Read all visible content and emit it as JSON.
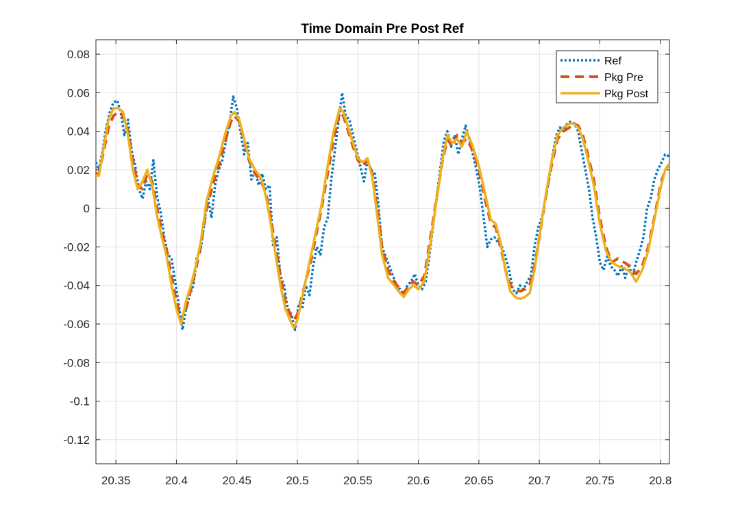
{
  "chart_data": {
    "type": "line",
    "title": "Time Domain Pre Post Ref",
    "xlabel": "",
    "ylabel": "",
    "xlim": [
      20.3335,
      20.8075
    ],
    "ylim": [
      -0.1325,
      0.0875
    ],
    "grid": true,
    "legend_position": "top-right",
    "x_ticks": [
      20.35,
      20.4,
      20.45,
      20.5,
      20.55,
      20.6,
      20.65,
      20.7,
      20.75,
      20.8
    ],
    "x_tick_labels": [
      "20.35",
      "20.4",
      "20.45",
      "20.5",
      "20.55",
      "20.6",
      "20.65",
      "20.7",
      "20.75",
      "20.8"
    ],
    "y_ticks": [
      0.08,
      0.06,
      0.04,
      0.02,
      0,
      -0.02,
      -0.04,
      -0.06,
      -0.08,
      -0.1,
      -0.12
    ],
    "y_tick_labels": [
      "0.08",
      "0.06",
      "0.04",
      "0.02",
      "0",
      "-0.02",
      "-0.04",
      "-0.06",
      "-0.08",
      "-0.1",
      "-0.12"
    ],
    "series": [
      {
        "name": "Ref",
        "color": "#0072BD",
        "style": "dotted",
        "x": [
          20.3335,
          20.336,
          20.339,
          20.342,
          20.345,
          20.348,
          20.351,
          20.354,
          20.357,
          20.36,
          20.363,
          20.366,
          20.369,
          20.372,
          20.375,
          20.378,
          20.381,
          20.384,
          20.387,
          20.39,
          20.393,
          20.396,
          20.399,
          20.402,
          20.405,
          20.408,
          20.411,
          20.414,
          20.417,
          20.42,
          20.423,
          20.426,
          20.429,
          20.432,
          20.435,
          20.438,
          20.441,
          20.444,
          20.447,
          20.45,
          20.453,
          20.456,
          20.459,
          20.462,
          20.465,
          20.468,
          20.471,
          20.474,
          20.477,
          20.48,
          20.483,
          20.486,
          20.489,
          20.492,
          20.495,
          20.498,
          20.501,
          20.504,
          20.507,
          20.51,
          20.513,
          20.516,
          20.519,
          20.522,
          20.525,
          20.528,
          20.531,
          20.534,
          20.537,
          20.54,
          20.543,
          20.546,
          20.549,
          20.552,
          20.555,
          20.558,
          20.561,
          20.564,
          20.567,
          20.57,
          20.573,
          20.576,
          20.579,
          20.582,
          20.585,
          20.588,
          20.591,
          20.594,
          20.597,
          20.6,
          20.603,
          20.606,
          20.609,
          20.612,
          20.615,
          20.618,
          20.621,
          20.624,
          20.627,
          20.63,
          20.633,
          20.636,
          20.639,
          20.642,
          20.645,
          20.648,
          20.651,
          20.654,
          20.657,
          20.66,
          20.663,
          20.666,
          20.669,
          20.672,
          20.675,
          20.678,
          20.681,
          20.684,
          20.687,
          20.69,
          20.693,
          20.696,
          20.699,
          20.702,
          20.705,
          20.708,
          20.711,
          20.714,
          20.717,
          20.72,
          20.723,
          20.726,
          20.729,
          20.732,
          20.735,
          20.738,
          20.741,
          20.744,
          20.747,
          20.75,
          20.753,
          20.756,
          20.759,
          20.762,
          20.765,
          20.768,
          20.771,
          20.774,
          20.777,
          20.78,
          20.783,
          20.786,
          20.789,
          20.792,
          20.795,
          20.798,
          20.801,
          20.804,
          20.8075
        ],
        "y": [
          0.024,
          0.02,
          0.03,
          0.042,
          0.05,
          0.055,
          0.056,
          0.05,
          0.038,
          0.046,
          0.03,
          0.022,
          0.01,
          0.005,
          0.014,
          0.01,
          0.025,
          0.006,
          -0.002,
          -0.015,
          -0.024,
          -0.026,
          -0.038,
          -0.05,
          -0.063,
          -0.052,
          -0.045,
          -0.04,
          -0.025,
          -0.022,
          -0.008,
          0.006,
          -0.005,
          0.012,
          0.02,
          0.025,
          0.035,
          0.045,
          0.058,
          0.052,
          0.04,
          0.028,
          0.034,
          0.015,
          0.02,
          0.012,
          0.018,
          0.01,
          0.012,
          -0.02,
          -0.015,
          -0.035,
          -0.04,
          -0.052,
          -0.055,
          -0.063,
          -0.05,
          -0.052,
          -0.04,
          -0.045,
          -0.03,
          -0.02,
          -0.024,
          -0.01,
          -0.005,
          0.015,
          0.03,
          0.045,
          0.06,
          0.048,
          0.046,
          0.038,
          0.03,
          0.022,
          0.014,
          0.025,
          0.02,
          0.018,
          0.002,
          -0.02,
          -0.025,
          -0.03,
          -0.035,
          -0.04,
          -0.042,
          -0.046,
          -0.04,
          -0.038,
          -0.034,
          -0.04,
          -0.042,
          -0.038,
          -0.025,
          -0.01,
          0.005,
          0.02,
          0.035,
          0.04,
          0.032,
          0.038,
          0.028,
          0.036,
          0.043,
          0.036,
          0.028,
          0.02,
          0.01,
          -0.005,
          -0.02,
          -0.016,
          -0.015,
          -0.018,
          -0.02,
          -0.025,
          -0.032,
          -0.042,
          -0.044,
          -0.04,
          -0.042,
          -0.038,
          -0.035,
          -0.02,
          -0.01,
          -0.005,
          0.005,
          0.015,
          0.028,
          0.038,
          0.042,
          0.04,
          0.044,
          0.045,
          0.044,
          0.04,
          0.03,
          0.02,
          0.01,
          -0.005,
          -0.015,
          -0.028,
          -0.032,
          -0.025,
          -0.03,
          -0.032,
          -0.035,
          -0.03,
          -0.036,
          -0.03,
          -0.035,
          -0.028,
          -0.022,
          -0.015,
          0.0,
          0.005,
          0.015,
          0.02,
          0.024,
          0.028,
          0.027
        ]
      },
      {
        "name": "Pkg Pre",
        "color": "#D95319",
        "style": "dashed",
        "x": [
          20.3335,
          20.336,
          20.34,
          20.344,
          20.348,
          20.352,
          20.356,
          20.36,
          20.364,
          20.368,
          20.372,
          20.376,
          20.38,
          20.384,
          20.388,
          20.392,
          20.396,
          20.4,
          20.404,
          20.408,
          20.412,
          20.416,
          20.42,
          20.425,
          20.43,
          20.435,
          20.44,
          20.445,
          20.448,
          20.452,
          20.456,
          20.46,
          20.465,
          20.47,
          20.474,
          20.478,
          20.482,
          20.486,
          20.49,
          20.494,
          20.497,
          20.5,
          20.504,
          20.508,
          20.512,
          20.516,
          20.52,
          20.525,
          20.53,
          20.535,
          20.538,
          20.542,
          20.546,
          20.55,
          20.554,
          20.558,
          20.562,
          20.566,
          20.57,
          20.575,
          20.58,
          20.585,
          20.588,
          20.592,
          20.596,
          20.6,
          20.605,
          20.61,
          20.615,
          20.62,
          20.624,
          20.628,
          20.632,
          20.636,
          20.64,
          20.645,
          20.65,
          20.655,
          20.66,
          20.664,
          20.668,
          20.672,
          20.676,
          20.68,
          20.684,
          20.688,
          20.692,
          20.696,
          20.7,
          20.705,
          20.71,
          20.715,
          20.72,
          20.725,
          20.728,
          20.732,
          20.736,
          20.74,
          20.745,
          20.75,
          20.755,
          20.76,
          20.765,
          20.77,
          20.775,
          20.78,
          20.785,
          20.79,
          20.795,
          20.8,
          20.804,
          20.8075
        ],
        "y": [
          0.018,
          0.018,
          0.03,
          0.042,
          0.048,
          0.05,
          0.048,
          0.04,
          0.025,
          0.012,
          0.01,
          0.018,
          0.014,
          0.0,
          -0.012,
          -0.022,
          -0.035,
          -0.048,
          -0.058,
          -0.052,
          -0.042,
          -0.032,
          -0.02,
          0.0,
          0.012,
          0.022,
          0.034,
          0.045,
          0.048,
          0.045,
          0.035,
          0.025,
          0.018,
          0.014,
          0.008,
          -0.005,
          -0.02,
          -0.035,
          -0.048,
          -0.055,
          -0.058,
          -0.055,
          -0.045,
          -0.035,
          -0.025,
          -0.012,
          0.0,
          0.018,
          0.036,
          0.05,
          0.048,
          0.04,
          0.032,
          0.025,
          0.022,
          0.025,
          0.018,
          0.0,
          -0.02,
          -0.032,
          -0.038,
          -0.042,
          -0.044,
          -0.04,
          -0.038,
          -0.04,
          -0.035,
          -0.015,
          0.005,
          0.025,
          0.036,
          0.032,
          0.038,
          0.034,
          0.036,
          0.03,
          0.02,
          0.005,
          -0.008,
          -0.01,
          -0.02,
          -0.032,
          -0.04,
          -0.042,
          -0.043,
          -0.042,
          -0.04,
          -0.03,
          -0.015,
          0.005,
          0.022,
          0.036,
          0.04,
          0.042,
          0.044,
          0.043,
          0.038,
          0.028,
          0.015,
          -0.005,
          -0.02,
          -0.028,
          -0.026,
          -0.028,
          -0.03,
          -0.034,
          -0.03,
          -0.02,
          -0.005,
          0.012,
          0.02,
          0.023
        ]
      },
      {
        "name": "Pkg Post",
        "color": "#EDB120",
        "style": "solid",
        "x": [
          20.3335,
          20.336,
          20.34,
          20.344,
          20.348,
          20.352,
          20.356,
          20.36,
          20.364,
          20.368,
          20.372,
          20.376,
          20.38,
          20.384,
          20.388,
          20.392,
          20.396,
          20.4,
          20.404,
          20.408,
          20.412,
          20.416,
          20.42,
          20.425,
          20.43,
          20.435,
          20.44,
          20.445,
          20.448,
          20.452,
          20.456,
          20.46,
          20.465,
          20.47,
          20.474,
          20.478,
          20.482,
          20.486,
          20.49,
          20.494,
          20.497,
          20.5,
          20.504,
          20.508,
          20.512,
          20.516,
          20.52,
          20.525,
          20.53,
          20.535,
          20.538,
          20.542,
          20.546,
          20.55,
          20.554,
          20.558,
          20.562,
          20.566,
          20.57,
          20.575,
          20.58,
          20.585,
          20.588,
          20.592,
          20.596,
          20.6,
          20.605,
          20.61,
          20.615,
          20.62,
          20.624,
          20.628,
          20.632,
          20.636,
          20.64,
          20.645,
          20.65,
          20.655,
          20.66,
          20.664,
          20.668,
          20.672,
          20.676,
          20.68,
          20.684,
          20.688,
          20.692,
          20.696,
          20.7,
          20.705,
          20.71,
          20.715,
          20.72,
          20.725,
          20.728,
          20.732,
          20.736,
          20.74,
          20.745,
          20.75,
          20.755,
          20.76,
          20.765,
          20.77,
          20.775,
          20.78,
          20.785,
          20.79,
          20.795,
          20.8,
          20.804,
          20.8075
        ],
        "y": [
          0.017,
          0.017,
          0.032,
          0.046,
          0.052,
          0.052,
          0.05,
          0.038,
          0.02,
          0.01,
          0.014,
          0.02,
          0.012,
          -0.004,
          -0.015,
          -0.025,
          -0.04,
          -0.052,
          -0.06,
          -0.048,
          -0.04,
          -0.03,
          -0.018,
          0.004,
          0.016,
          0.026,
          0.038,
          0.048,
          0.05,
          0.046,
          0.036,
          0.026,
          0.02,
          0.016,
          0.006,
          -0.008,
          -0.024,
          -0.04,
          -0.052,
          -0.058,
          -0.062,
          -0.058,
          -0.046,
          -0.034,
          -0.022,
          -0.01,
          0.002,
          0.022,
          0.04,
          0.052,
          0.05,
          0.042,
          0.034,
          0.026,
          0.024,
          0.026,
          0.016,
          -0.004,
          -0.024,
          -0.036,
          -0.04,
          -0.044,
          -0.046,
          -0.042,
          -0.04,
          -0.042,
          -0.038,
          -0.018,
          0.004,
          0.026,
          0.038,
          0.034,
          0.036,
          0.032,
          0.04,
          0.032,
          0.022,
          0.008,
          -0.006,
          -0.008,
          -0.018,
          -0.032,
          -0.043,
          -0.046,
          -0.047,
          -0.046,
          -0.044,
          -0.032,
          -0.015,
          0.006,
          0.024,
          0.038,
          0.042,
          0.044,
          0.044,
          0.042,
          0.036,
          0.026,
          0.012,
          -0.008,
          -0.022,
          -0.028,
          -0.03,
          -0.031,
          -0.033,
          -0.038,
          -0.032,
          -0.022,
          -0.006,
          0.01,
          0.02,
          0.023
        ]
      }
    ]
  }
}
